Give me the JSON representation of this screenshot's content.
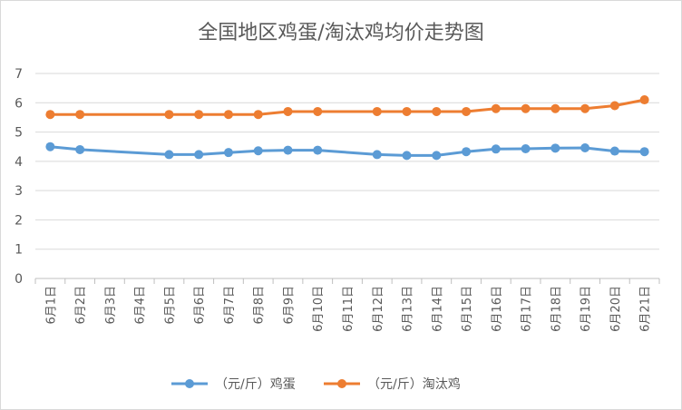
{
  "chart_data": {
    "type": "line",
    "title": "全国地区鸡蛋/淘汰鸡均价走势图",
    "categories": [
      "6月1日",
      "6月2日",
      "6月3日",
      "6月4日",
      "6月5日",
      "6月6日",
      "6月7日",
      "6月8日",
      "6月9日",
      "6月10日",
      "6月11日",
      "6月12日",
      "6月13日",
      "6月14日",
      "6月15日",
      "6月16日",
      "6月17日",
      "6月18日",
      "6月19日",
      "6月20日",
      "6月21日"
    ],
    "yticks": [
      "0",
      "1",
      "2",
      "3",
      "4",
      "5",
      "6",
      "7"
    ],
    "ylim": [
      0,
      7
    ],
    "grid": true,
    "legend_position": "bottom",
    "series": [
      {
        "name": "（元/斤）鸡蛋",
        "color": "#5b9bd5",
        "values": [
          4.5,
          4.4,
          null,
          null,
          4.23,
          4.23,
          4.3,
          4.36,
          4.38,
          4.38,
          null,
          4.23,
          4.2,
          4.2,
          4.33,
          4.42,
          4.43,
          4.45,
          4.46,
          4.35,
          4.33
        ]
      },
      {
        "name": "（元/斤）淘汰鸡",
        "color": "#ed7d31",
        "values": [
          5.6,
          5.6,
          null,
          null,
          5.6,
          5.6,
          5.6,
          5.6,
          5.7,
          5.7,
          null,
          5.7,
          5.7,
          5.7,
          5.7,
          5.8,
          5.8,
          5.8,
          5.8,
          5.9,
          6.1
        ]
      }
    ]
  }
}
